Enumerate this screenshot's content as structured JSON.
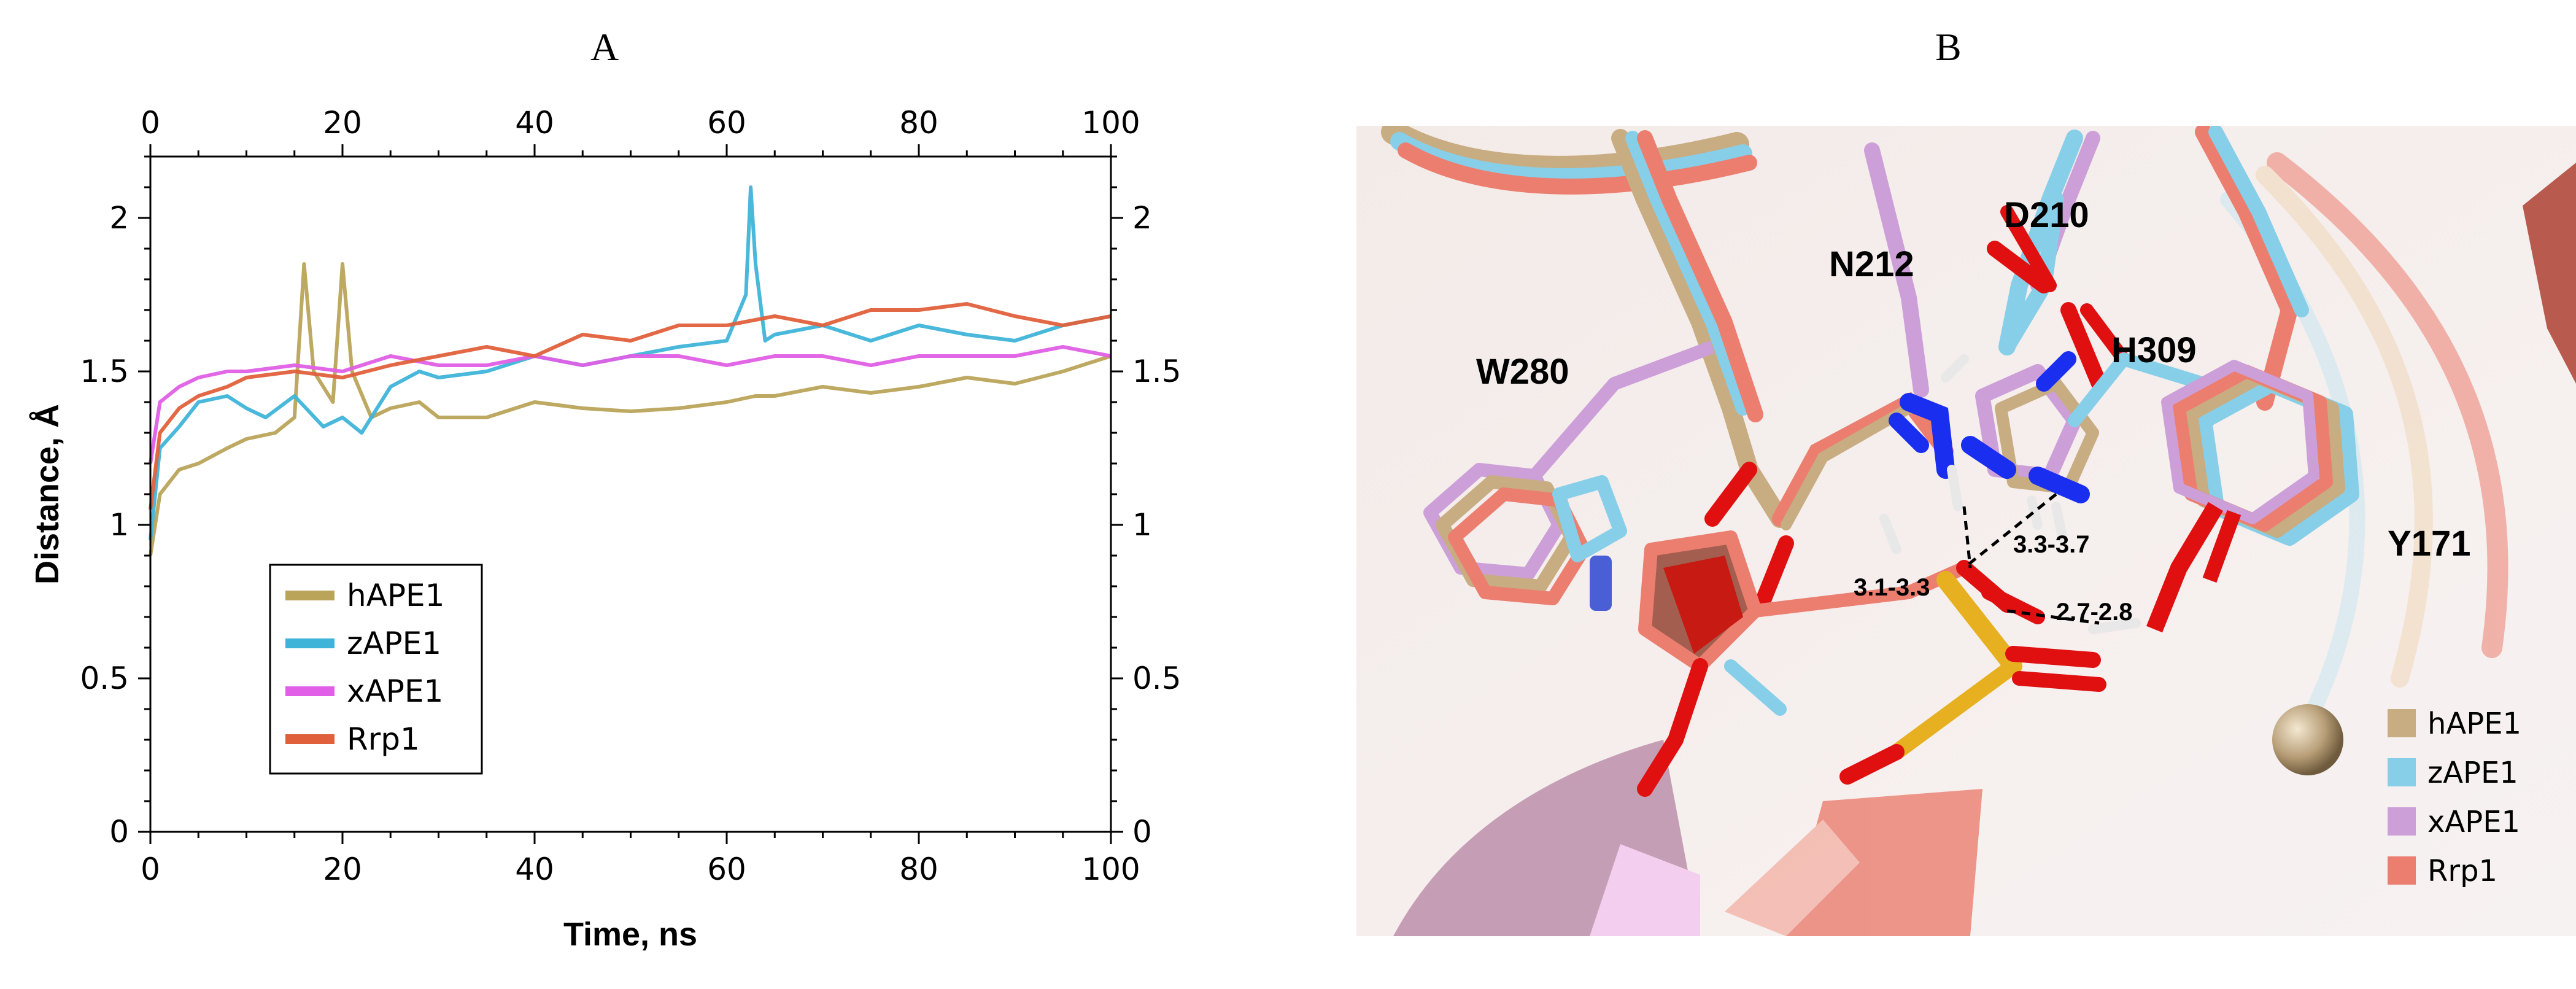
{
  "panel_a_label": "A",
  "panel_b_label": "B",
  "chart_data": {
    "type": "line",
    "title": "",
    "xlabel": "Time, ns",
    "ylabel": "Distance, Å",
    "xlim": [
      0,
      100
    ],
    "ylim": [
      0,
      2.2
    ],
    "x_ticks": [
      "0",
      "20",
      "40",
      "60",
      "80",
      "100"
    ],
    "y_ticks": [
      "0",
      "0.5",
      "1",
      "1.5",
      "2"
    ],
    "x_tick_values": [
      0,
      20,
      40,
      60,
      80,
      100
    ],
    "y_tick_values": [
      0,
      0.5,
      1,
      1.5,
      2
    ],
    "grid": false,
    "legend_position": "bottom-left",
    "series": [
      {
        "name": "hAPE1",
        "color": "#b9a45a",
        "x": [
          0,
          1,
          3,
          5,
          8,
          10,
          13,
          15,
          16,
          17,
          19,
          20,
          21,
          23,
          25,
          28,
          30,
          35,
          40,
          45,
          50,
          55,
          60,
          63,
          65,
          70,
          75,
          80,
          85,
          90,
          95,
          100
        ],
        "y": [
          0.9,
          1.1,
          1.18,
          1.2,
          1.25,
          1.28,
          1.3,
          1.35,
          1.85,
          1.5,
          1.4,
          1.85,
          1.5,
          1.35,
          1.38,
          1.4,
          1.35,
          1.35,
          1.4,
          1.38,
          1.37,
          1.38,
          1.4,
          1.42,
          1.42,
          1.45,
          1.43,
          1.45,
          1.48,
          1.46,
          1.5,
          1.55
        ]
      },
      {
        "name": "zAPE1",
        "color": "#3fb4d9",
        "x": [
          0,
          1,
          3,
          5,
          8,
          10,
          12,
          15,
          18,
          20,
          22,
          25,
          28,
          30,
          35,
          40,
          45,
          50,
          55,
          60,
          62,
          62.5,
          63,
          64,
          65,
          70,
          75,
          80,
          85,
          90,
          95,
          100
        ],
        "y": [
          0.95,
          1.25,
          1.32,
          1.4,
          1.42,
          1.38,
          1.35,
          1.42,
          1.32,
          1.35,
          1.3,
          1.45,
          1.5,
          1.48,
          1.5,
          1.55,
          1.52,
          1.55,
          1.58,
          1.6,
          1.75,
          2.1,
          1.85,
          1.6,
          1.62,
          1.65,
          1.6,
          1.65,
          1.62,
          1.6,
          1.65,
          1.68
        ]
      },
      {
        "name": "xAPE1",
        "color": "#e05fe6",
        "x": [
          0,
          1,
          3,
          5,
          8,
          10,
          15,
          20,
          25,
          30,
          35,
          40,
          45,
          50,
          55,
          60,
          65,
          70,
          75,
          80,
          85,
          90,
          95,
          100
        ],
        "y": [
          1.2,
          1.4,
          1.45,
          1.48,
          1.5,
          1.5,
          1.52,
          1.5,
          1.55,
          1.52,
          1.52,
          1.55,
          1.52,
          1.55,
          1.55,
          1.52,
          1.55,
          1.55,
          1.52,
          1.55,
          1.55,
          1.55,
          1.58,
          1.55
        ]
      },
      {
        "name": "Rrp1",
        "color": "#e0603c",
        "x": [
          0,
          1,
          3,
          5,
          8,
          10,
          15,
          20,
          25,
          30,
          35,
          40,
          45,
          50,
          55,
          60,
          65,
          70,
          75,
          80,
          85,
          90,
          95,
          100
        ],
        "y": [
          1.05,
          1.3,
          1.38,
          1.42,
          1.45,
          1.48,
          1.5,
          1.48,
          1.52,
          1.55,
          1.58,
          1.55,
          1.62,
          1.6,
          1.65,
          1.65,
          1.68,
          1.65,
          1.7,
          1.7,
          1.72,
          1.68,
          1.65,
          1.68
        ]
      }
    ]
  },
  "structure": {
    "residue_labels": [
      "W280",
      "N212",
      "D210",
      "H309",
      "Y171"
    ],
    "distance_labels": [
      "3.1-3.3",
      "3.3-3.7",
      "2.7-2.8"
    ],
    "legend": [
      {
        "name": "hAPE1",
        "color": "#c8ac82"
      },
      {
        "name": "zAPE1",
        "color": "#87cfe9"
      },
      {
        "name": "xAPE1",
        "color": "#cc9fd9"
      },
      {
        "name": "Rrp1",
        "color": "#ec7e70"
      }
    ]
  }
}
